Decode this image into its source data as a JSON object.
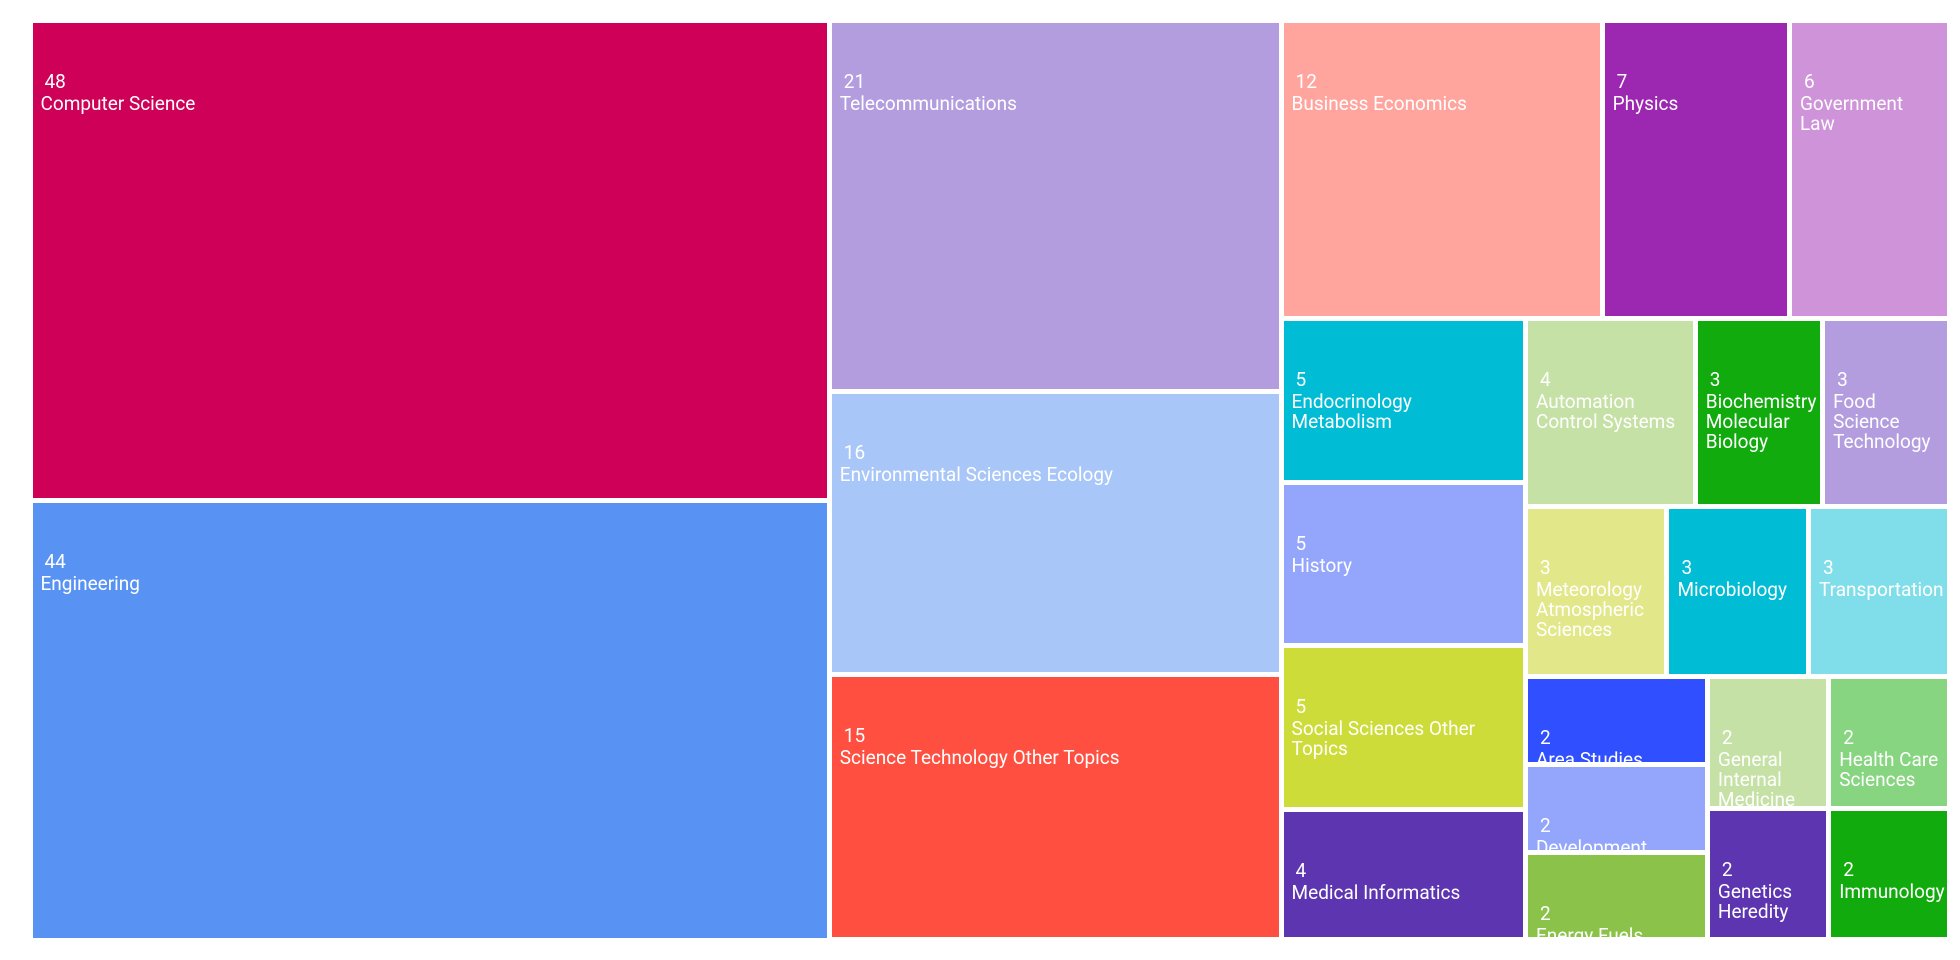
{
  "chart_data": {
    "type": "treemap",
    "categories": [
      "Computer Science",
      "Engineering",
      "Telecommunications",
      "Environmental Sciences Ecology",
      "Science Technology Other Topics",
      "Business Economics",
      "Physics",
      "Government Law",
      "Endocrinology Metabolism",
      "History",
      "Social Sciences Other Topics",
      "Medical Informatics",
      "Automation Control Systems",
      "Biochemistry Molecular Biology",
      "Food Science Technology",
      "Meteorology Atmospheric Sciences",
      "Microbiology",
      "Transportation",
      "Area Studies",
      "Development Studies",
      "Energy Fuels",
      "General Internal Medicine",
      "Health Care Sciences",
      "Genetics Heredity",
      "Immunology"
    ],
    "values": [
      48,
      44,
      21,
      16,
      15,
      12,
      7,
      6,
      5,
      5,
      5,
      4,
      4,
      3,
      3,
      3,
      3,
      3,
      2,
      2,
      2,
      2,
      2,
      2,
      2
    ],
    "colors": [
      "#ce0058",
      "#5893f3",
      "#b39ddf",
      "#a8c6f8",
      "#ff4f40",
      "#ffa59e",
      "#9c27b0",
      "#ce93d8",
      "#00bcd4",
      "#94a6fc",
      "#cddc39",
      "#5e35b1",
      "#c5e1a5",
      "#12ab0e",
      "#b39ddf",
      "#e2e78a",
      "#00bcd4",
      "#80deea",
      "#304ffe",
      "#94a6fc",
      "#8bc34a",
      "#c5e1a5",
      "#87d580",
      "#5e35b1",
      "#12ab0e"
    ]
  }
}
